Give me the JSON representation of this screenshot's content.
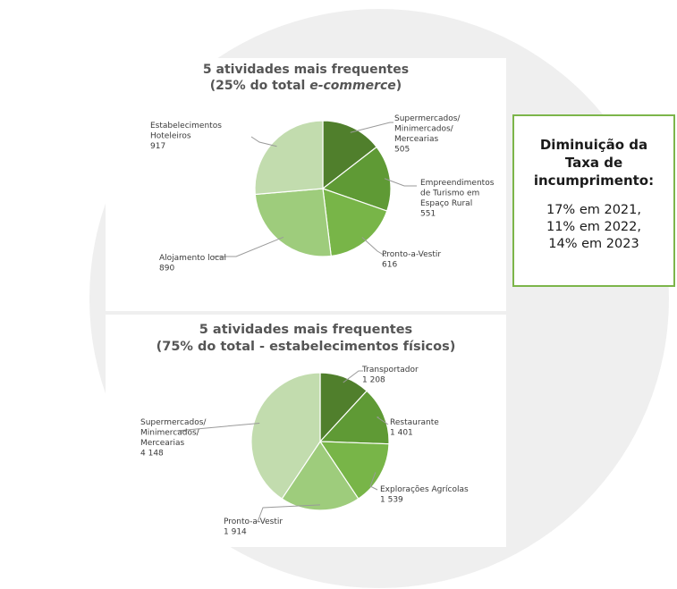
{
  "chart_data": [
    {
      "type": "pie",
      "title_main": "5 atividades mais frequentes",
      "title_sub_prefix": "(25% do total ",
      "title_sub_italic": "e-commerce",
      "title_sub_suffix": ")",
      "slices": [
        {
          "label": "Supermercados/ Minimercados/ Mercearias",
          "label_lines": [
            "Supermercados/",
            "Minimercados/",
            "Mercearias"
          ],
          "value": 505,
          "value_label": "505",
          "color": "#507f2c"
        },
        {
          "label": "Empreendimentos de Turismo em Espaço Rural",
          "label_lines": [
            "Empreendimentos",
            "de Turismo em",
            "Espaço Rural"
          ],
          "value": 551,
          "value_label": "551",
          "color": "#5f9a35"
        },
        {
          "label": "Pronto-a-Vestir",
          "label_lines": [
            "Pronto-a-Vestir"
          ],
          "value": 616,
          "value_label": "616",
          "color": "#78b548"
        },
        {
          "label": "Alojamento local",
          "label_lines": [
            "Alojamento local"
          ],
          "value": 890,
          "value_label": "890",
          "color": "#9ecc7c"
        },
        {
          "label": "Estabelecimentos Hoteleiros",
          "label_lines": [
            "Estabelecimentos",
            "Hoteleiros"
          ],
          "value": 917,
          "value_label": "917",
          "color": "#c2dcae"
        }
      ]
    },
    {
      "type": "pie",
      "title_main": "5 atividades mais frequentes",
      "title_sub": "(75% do total - estabelecimentos físicos)",
      "slices": [
        {
          "label": "Transportador",
          "label_lines": [
            "Transportador"
          ],
          "value": 1208,
          "value_label": "1 208",
          "color": "#507f2c"
        },
        {
          "label": "Restaurante",
          "label_lines": [
            "Restaurante"
          ],
          "value": 1401,
          "value_label": "1 401",
          "color": "#5f9a35"
        },
        {
          "label": "Explorações Agrícolas",
          "label_lines": [
            "Explorações Agrícolas"
          ],
          "value": 1539,
          "value_label": "1 539",
          "color": "#78b548"
        },
        {
          "label": "Pronto-a-Vestir",
          "label_lines": [
            "Pronto-a-Vestir"
          ],
          "value": 1914,
          "value_label": "1 914",
          "color": "#9ecc7c"
        },
        {
          "label": "Supermercados/ Minimercados/ Mercearias",
          "label_lines": [
            "Supermercados/",
            "Minimercados/",
            "Mercearias"
          ],
          "value": 4148,
          "value_label": "4 148",
          "color": "#c2dcae"
        }
      ]
    }
  ],
  "note": {
    "title": "Diminuição da Taxa de incumprimento:",
    "lines": [
      "17% em 2021,",
      "11% em 2022,",
      "14% em 2023"
    ],
    "border_color": "#7cb54a"
  }
}
